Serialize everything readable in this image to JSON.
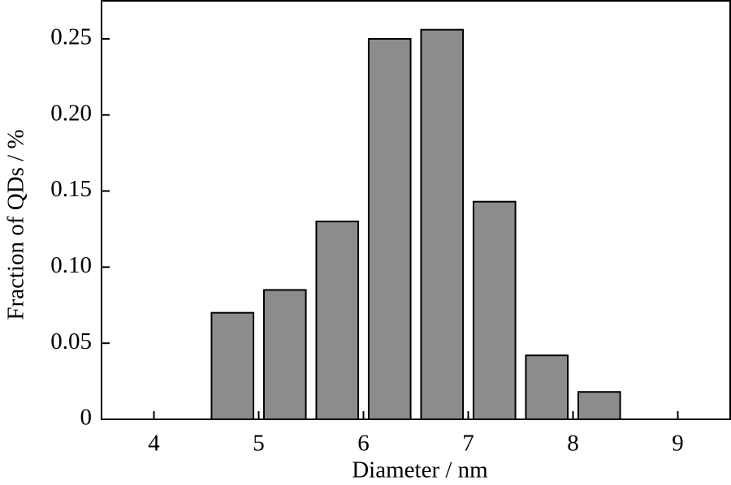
{
  "chart_data": {
    "type": "bar",
    "x": [
      4.75,
      5.25,
      5.75,
      6.25,
      6.75,
      7.25,
      7.75,
      8.25
    ],
    "values": [
      0.07,
      0.085,
      0.13,
      0.25,
      0.256,
      0.143,
      0.042,
      0.018
    ],
    "color": "#8c8c8c",
    "xlabel": "Diameter / nm",
    "ylabel": "Fraction of QDs / %",
    "xlim": [
      3.5,
      9.5
    ],
    "xticks": [
      4,
      5,
      6,
      7,
      8,
      9
    ],
    "ylim": [
      0,
      0.275
    ],
    "yticks": [
      0,
      0.05,
      {
        "value": 0.1,
        "label": "0.10"
      },
      0.15,
      {
        "value": 0.2,
        "label": "0.20"
      },
      0.25
    ]
  }
}
